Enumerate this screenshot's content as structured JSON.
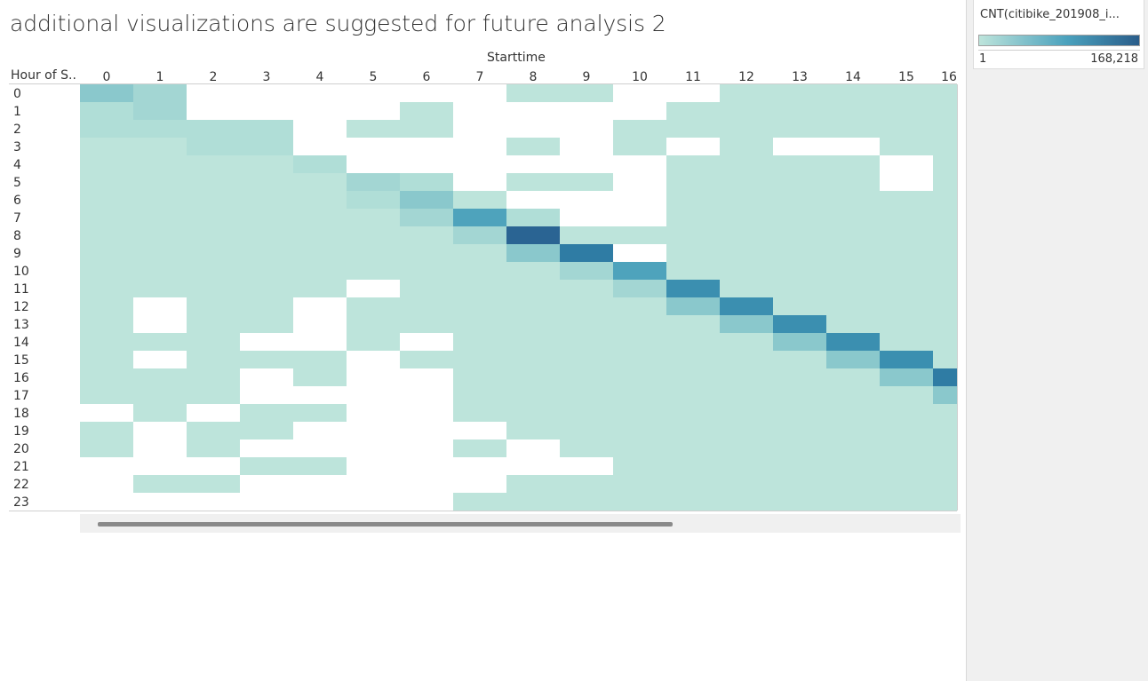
{
  "title": "additional visualizations are suggested for future analysis 2",
  "legend": {
    "title": "CNT(citibike_201908_i...",
    "min_label": "1",
    "max_label": "168,218",
    "color_low": "#bde4db",
    "color_high": "#2a5d8a"
  },
  "colors": {
    "empty_cell": "#ffffff",
    "levels": {
      "1": "#bde4db",
      "2": "#b0ded7",
      "3": "#a3d6d3",
      "4": "#8ac8cc",
      "5": "#4ea3bc",
      "6": "#3b8fb0",
      "7": "#2f7ca4",
      "8": "#2a6493"
    }
  },
  "chart_data": {
    "type": "heatmap",
    "title": "additional visualizations are suggested for future analysis 2",
    "xlabel": "Starttime",
    "ylabel": "Hour of S..",
    "x_categories": [
      "0",
      "1",
      "2",
      "3",
      "4",
      "5",
      "6",
      "7",
      "8",
      "9",
      "10",
      "11",
      "12",
      "13",
      "14",
      "15",
      "16"
    ],
    "y_categories": [
      "0",
      "1",
      "2",
      "3",
      "4",
      "5",
      "6",
      "7",
      "8",
      "9",
      "10",
      "11",
      "12",
      "13",
      "14",
      "15",
      "16",
      "17",
      "18",
      "19",
      "20",
      "21",
      "22",
      "23"
    ],
    "value_range": [
      1,
      168218
    ],
    "value_encoding": "intensity level 0-8 read from the color ramp (0 = no data / blank cell, 1 = lowest count, 8 = highest count ~168,218)",
    "last_column_partially_visible": true,
    "grid": [
      [
        4,
        3,
        0,
        0,
        0,
        0,
        0,
        0,
        1,
        1,
        0,
        0,
        1,
        1,
        1,
        1,
        1
      ],
      [
        2,
        3,
        0,
        0,
        0,
        0,
        1,
        0,
        0,
        0,
        0,
        1,
        1,
        1,
        1,
        1,
        1
      ],
      [
        2,
        2,
        2,
        2,
        0,
        1,
        1,
        0,
        0,
        0,
        1,
        1,
        1,
        1,
        1,
        1,
        1
      ],
      [
        1,
        1,
        2,
        2,
        0,
        0,
        0,
        0,
        1,
        0,
        1,
        0,
        1,
        0,
        0,
        1,
        1
      ],
      [
        1,
        1,
        1,
        1,
        2,
        0,
        0,
        0,
        0,
        0,
        0,
        1,
        1,
        1,
        1,
        0,
        1
      ],
      [
        1,
        1,
        1,
        1,
        1,
        3,
        2,
        0,
        1,
        1,
        0,
        1,
        1,
        1,
        1,
        0,
        1
      ],
      [
        1,
        1,
        1,
        1,
        1,
        2,
        4,
        1,
        0,
        0,
        0,
        1,
        1,
        1,
        1,
        1,
        1
      ],
      [
        1,
        1,
        1,
        1,
        1,
        1,
        3,
        5,
        2,
        0,
        0,
        1,
        1,
        1,
        1,
        1,
        1
      ],
      [
        1,
        1,
        1,
        1,
        1,
        1,
        1,
        3,
        8,
        1,
        1,
        1,
        1,
        1,
        1,
        1,
        1
      ],
      [
        1,
        1,
        1,
        1,
        1,
        1,
        1,
        1,
        4,
        7,
        0,
        1,
        1,
        1,
        1,
        1,
        1
      ],
      [
        1,
        1,
        1,
        1,
        1,
        1,
        1,
        1,
        1,
        3,
        5,
        1,
        1,
        1,
        1,
        1,
        1
      ],
      [
        1,
        1,
        1,
        1,
        1,
        0,
        1,
        1,
        1,
        1,
        3,
        6,
        1,
        1,
        1,
        1,
        1
      ],
      [
        1,
        0,
        1,
        1,
        0,
        1,
        1,
        1,
        1,
        1,
        1,
        4,
        6,
        1,
        1,
        1,
        1
      ],
      [
        1,
        0,
        1,
        1,
        0,
        1,
        1,
        1,
        1,
        1,
        1,
        1,
        4,
        6,
        1,
        1,
        1
      ],
      [
        1,
        1,
        1,
        0,
        0,
        1,
        0,
        1,
        1,
        1,
        1,
        1,
        1,
        4,
        6,
        1,
        1
      ],
      [
        1,
        0,
        1,
        1,
        1,
        0,
        1,
        1,
        1,
        1,
        1,
        1,
        1,
        1,
        4,
        6,
        1
      ],
      [
        1,
        1,
        1,
        0,
        1,
        0,
        0,
        1,
        1,
        1,
        1,
        1,
        1,
        1,
        1,
        4,
        7
      ],
      [
        1,
        1,
        1,
        0,
        0,
        0,
        0,
        1,
        1,
        1,
        1,
        1,
        1,
        1,
        1,
        1,
        4
      ],
      [
        0,
        1,
        0,
        1,
        1,
        0,
        0,
        1,
        1,
        1,
        1,
        1,
        1,
        1,
        1,
        1,
        1
      ],
      [
        1,
        0,
        1,
        1,
        0,
        0,
        0,
        0,
        1,
        1,
        1,
        1,
        1,
        1,
        1,
        1,
        1
      ],
      [
        1,
        0,
        1,
        0,
        0,
        0,
        0,
        1,
        0,
        1,
        1,
        1,
        1,
        1,
        1,
        1,
        1
      ],
      [
        0,
        0,
        0,
        1,
        1,
        0,
        0,
        0,
        0,
        0,
        1,
        1,
        1,
        1,
        1,
        1,
        1
      ],
      [
        0,
        1,
        1,
        0,
        0,
        0,
        0,
        0,
        1,
        1,
        1,
        1,
        1,
        1,
        1,
        1,
        1
      ],
      [
        0,
        0,
        0,
        0,
        0,
        0,
        0,
        1,
        1,
        1,
        1,
        1,
        1,
        1,
        1,
        1,
        1
      ]
    ]
  }
}
